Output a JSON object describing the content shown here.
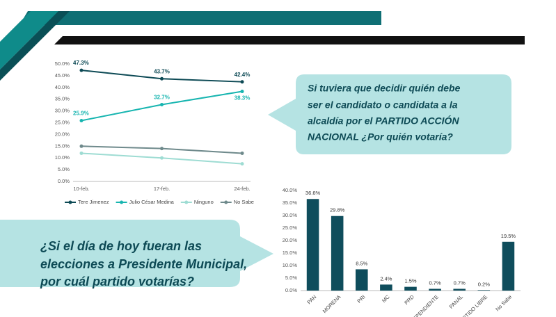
{
  "questions": [
    [
      "Si tuviera que decidir quién debe",
      "ser el candidato o candidata a la",
      "alcaldía por el PARTIDO ACCIÓN",
      "NACIONAL ¿Por quién votaría?"
    ],
    [
      "¿Si el día de hoy fueran las",
      "elecciones a Presidente Municipal,",
      "por cuál partido votarías?"
    ]
  ],
  "chart_data": [
    {
      "type": "line",
      "categories": [
        "10-feb.",
        "17-feb.",
        "24-feb."
      ],
      "series": [
        {
          "name": "Tere Jimenez",
          "color": "#0d4a55",
          "values": [
            47.3,
            43.7,
            42.4
          ],
          "value_labels": [
            "47.3%",
            "43.7%",
            "42.4%"
          ]
        },
        {
          "name": "Julio César Medina",
          "color": "#17b5b0",
          "values": [
            25.9,
            32.7,
            38.3
          ],
          "value_labels": [
            "25.9%",
            "32.7%",
            "38.3%"
          ]
        },
        {
          "name": "Ninguno",
          "color": "#9edcd3",
          "values": [
            12,
            10,
            7.5
          ]
        },
        {
          "name": "No Sabe",
          "color": "#6f8a8c",
          "values": [
            15,
            14,
            12
          ]
        }
      ],
      "ylim": [
        0,
        50
      ],
      "yticks": [
        {
          "value": 0,
          "label": "0.0%"
        },
        {
          "value": 5,
          "label": "5.0%"
        },
        {
          "value": 10,
          "label": "10.0%"
        },
        {
          "value": 15,
          "label": "15.0%"
        },
        {
          "value": 20,
          "label": "20.0%"
        },
        {
          "value": 25,
          "label": "25.0%"
        },
        {
          "value": 30,
          "label": "30.0%"
        },
        {
          "value": 35,
          "label": "35.0%"
        },
        {
          "value": 40,
          "label": "40.0%"
        },
        {
          "value": 45,
          "label": "45.0%"
        },
        {
          "value": 50,
          "label": "50.0%"
        }
      ],
      "grid": false,
      "legend": "bottom"
    },
    {
      "type": "bar",
      "categories": [
        "PAN",
        "MORENA",
        "PRI",
        "MC",
        "PRD",
        "INDEPENDIENTE",
        "PANAL",
        "PARTIDO LIBRE",
        "No Sabe"
      ],
      "values": [
        36.6,
        29.8,
        8.5,
        2.4,
        1.5,
        0.7,
        0.7,
        0.2,
        19.5
      ],
      "value_labels": [
        "36.6%",
        "29.8%",
        "8.5%",
        "2.4%",
        "1.5%",
        "0.7%",
        "0.7%",
        "0.2%",
        "19.5%"
      ],
      "color": "#0f4d5c",
      "ylim": [
        0,
        40
      ],
      "yticks": [
        {
          "value": 0,
          "label": "0.0%"
        },
        {
          "value": 5,
          "label": "5.0%"
        },
        {
          "value": 10,
          "label": "10.0%"
        },
        {
          "value": 15,
          "label": "15.0%"
        },
        {
          "value": 20,
          "label": "20.0%"
        },
        {
          "value": 25,
          "label": "25.0%"
        },
        {
          "value": 30,
          "label": "30.0%"
        },
        {
          "value": 35,
          "label": "35.0%"
        },
        {
          "value": 40,
          "label": "40.0%"
        }
      ]
    }
  ]
}
